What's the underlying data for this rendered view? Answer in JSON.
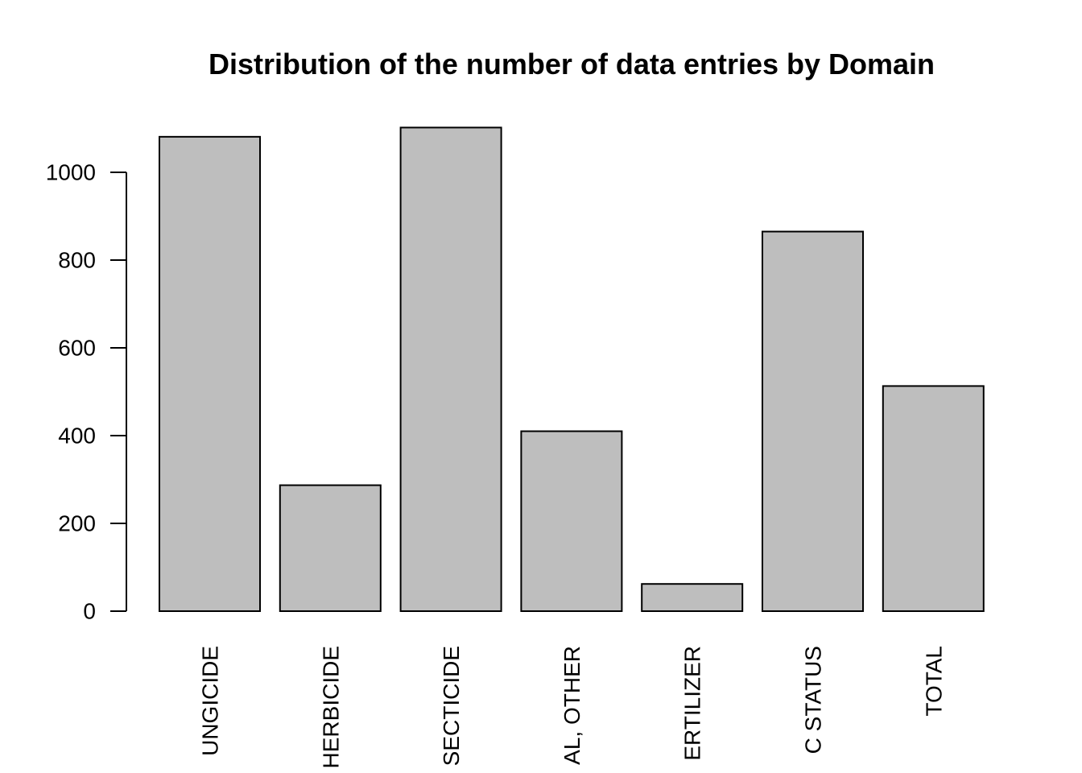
{
  "chart_data": {
    "type": "bar",
    "title": "Distribution of the number of data entries by Domain",
    "xlabel": "",
    "ylabel": "",
    "categories": [
      "UNGICIDE",
      "HERBICIDE",
      "SECTICIDE",
      "AL, OTHER",
      "ERTILIZER",
      "C STATUS",
      "TOTAL"
    ],
    "values": [
      1081,
      287,
      1102,
      410,
      62,
      865,
      513
    ],
    "yticks": [
      0,
      200,
      400,
      600,
      800,
      1000
    ],
    "ylim": [
      0,
      1102
    ],
    "bar_color": "#bebebe",
    "grid": false
  }
}
